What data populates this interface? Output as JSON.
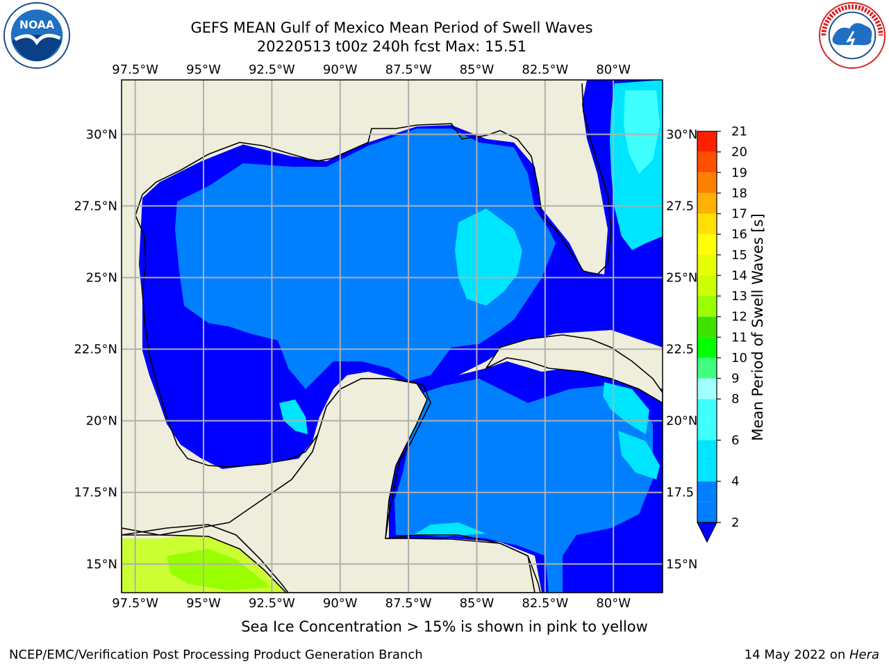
{
  "title_line1": "GEFS MEAN Gulf of Mexico Mean Period of Swell Waves",
  "title_line2": "20220513 t00z 240h fcst   Max: 15.51",
  "subtitle": "Sea Ice Concentration > 15% is shown in pink to yellow",
  "footer_left": "NCEP/EMC/Verification Post Processing Product Generation Branch",
  "footer_date": "14 May 2022 on ",
  "footer_host": "Hera",
  "logos": {
    "left": "noaa-logo",
    "right": "national-weather-service-logo"
  },
  "map": {
    "lon_range": [
      -98,
      -78.2
    ],
    "lat_range": [
      14,
      31.9
    ],
    "lon_ticks": [
      {
        "value": -97.5,
        "label": "97.5°W"
      },
      {
        "value": -95,
        "label": "95°W"
      },
      {
        "value": -92.5,
        "label": "92.5°W"
      },
      {
        "value": -90,
        "label": "90°W"
      },
      {
        "value": -87.5,
        "label": "87.5°W"
      },
      {
        "value": -85,
        "label": "85°W"
      },
      {
        "value": -82.5,
        "label": "82.5°W"
      },
      {
        "value": -80,
        "label": "80°W"
      }
    ],
    "lat_ticks_left": [
      {
        "value": 30,
        "label": "30°N"
      },
      {
        "value": 27.5,
        "label": "27.5°N"
      },
      {
        "value": 25,
        "label": "25°N"
      },
      {
        "value": 22.5,
        "label": "22.5°N"
      },
      {
        "value": 20,
        "label": "20°N"
      },
      {
        "value": 17.5,
        "label": "17.5°N"
      },
      {
        "value": 15,
        "label": "15°N"
      }
    ],
    "lat_ticks_right": [
      {
        "value": 30,
        "label": "30°N"
      },
      {
        "value": 27.5,
        "label": "27.5"
      },
      {
        "value": 25,
        "label": "25°N"
      },
      {
        "value": 22.5,
        "label": "22.5"
      },
      {
        "value": 20,
        "label": "20°N"
      },
      {
        "value": 17.5,
        "label": "17.5"
      },
      {
        "value": 15,
        "label": "15°N"
      }
    ],
    "colors": {
      "land": "#efeddb",
      "ocean_2_4": "#0080ff",
      "ocean_under_2": "#0000ff",
      "swell_4_6": "#00e5ff",
      "swell_6_8": "#40ffff",
      "sea_ice_low": "#ccff33",
      "sea_ice_high": "#99ff00",
      "grid": "#b0b0b0",
      "coast": "#000000"
    }
  },
  "colorbar": {
    "label": "Mean Period of Swell Waves [s]",
    "levels": [
      2,
      3,
      4,
      5,
      6,
      7,
      8,
      9,
      10,
      11,
      12,
      13,
      14,
      15,
      16,
      17,
      18,
      19,
      20,
      21
    ],
    "tick_labels": [
      "2",
      "4",
      "6",
      "8",
      "9",
      "10",
      "11",
      "12",
      "13",
      "14",
      "15",
      "16",
      "17",
      "18",
      "19",
      "20",
      "21"
    ],
    "tick_values": [
      2,
      4,
      6,
      8,
      9,
      10,
      11,
      12,
      13,
      14,
      15,
      16,
      17,
      18,
      19,
      20,
      21
    ],
    "segment_colors": [
      "#0080ff",
      "#0080ff",
      "#00e5ff",
      "#00e5ff",
      "#40ffff",
      "#40ffff",
      "#a0ffff",
      "#40ff80",
      "#00ff00",
      "#40e000",
      "#99ff00",
      "#ccff00",
      "#e6ff00",
      "#ffff00",
      "#ffe000",
      "#ffb000",
      "#ff8000",
      "#ff5000",
      "#ff2000"
    ],
    "extend_color": "#0000ff"
  }
}
